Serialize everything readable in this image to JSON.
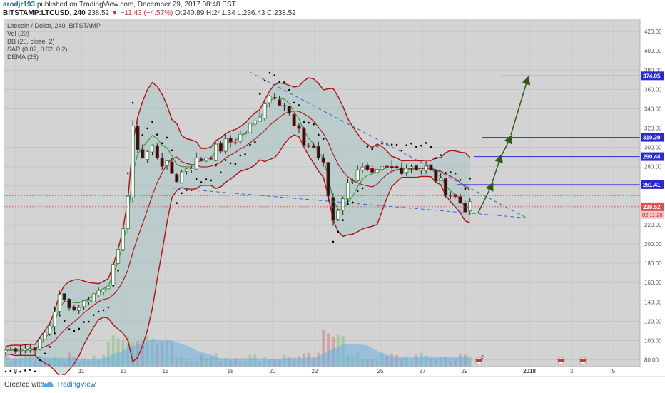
{
  "header": {
    "author": "arodjr193",
    "published": "published on TradingView.com, December 29, 2017 08:48 EST",
    "symbol": "BITSTAMP:LTCUSD, 240",
    "last": "238.52",
    "arrow": "▼",
    "change": "−11.43 (−4.57%)",
    "ohlc": "O:240.89 H:241.34 L:236.43 C:238.52"
  },
  "legend": {
    "title": "Litecoin / Dollar, 240, BITSTAMP",
    "items": [
      "Vol (20)",
      "BB (20, close, 2)",
      "SAR (0.02, 0.02, 0.2)",
      "DEMA (25)"
    ]
  },
  "footer": {
    "created": "Created with",
    "brand": "TradingView"
  },
  "colors": {
    "background": "#d3d3d3",
    "bull": "#3a7a3a",
    "bear": "#b02020",
    "bb": "#b01010",
    "bb_fill": "#a9c6c6",
    "dema": "#2e8b2e",
    "sar": "#000000",
    "volume_ma": "#6aaee0",
    "target": "#2a2ad4",
    "trendline": "#3366cc",
    "projection": "#2f5a1a"
  },
  "chart_data": {
    "type": "candlestick",
    "title": "Litecoin / Dollar, 240, BITSTAMP",
    "timeframe": "240",
    "ylim": [
      76,
      426
    ],
    "y_ticks": [
      80,
      100,
      120,
      140,
      160,
      180,
      200,
      220,
      240,
      260,
      280,
      300,
      320,
      340,
      360,
      380,
      400,
      420
    ],
    "x_ticks": [
      "8",
      "11",
      "13",
      "15",
      "18",
      "20",
      "22",
      "25",
      "27",
      "29",
      "2018",
      "3",
      "5"
    ],
    "price_path": [
      [
        0,
        90
      ],
      [
        6,
        92
      ],
      [
        9,
        116
      ],
      [
        11,
        146
      ],
      [
        14,
        132
      ],
      [
        18,
        148
      ],
      [
        21,
        160
      ],
      [
        23,
        190
      ],
      [
        25,
        250
      ],
      [
        26,
        315
      ],
      [
        28,
        290
      ],
      [
        30,
        300
      ],
      [
        32,
        285
      ],
      [
        35,
        268
      ],
      [
        37,
        280
      ],
      [
        40,
        288
      ],
      [
        44,
        300
      ],
      [
        48,
        312
      ],
      [
        51,
        325
      ],
      [
        53,
        350
      ],
      [
        55,
        358
      ],
      [
        57,
        345
      ],
      [
        59,
        320
      ],
      [
        61,
        305
      ],
      [
        63,
        300
      ],
      [
        65,
        280
      ],
      [
        66,
        250
      ],
      [
        67,
        225
      ],
      [
        69,
        250
      ],
      [
        72,
        280
      ],
      [
        75,
        268
      ],
      [
        77,
        275
      ],
      [
        80,
        278
      ],
      [
        83,
        282
      ],
      [
        86,
        278
      ],
      [
        88,
        268
      ],
      [
        90,
        256
      ],
      [
        92,
        248
      ],
      [
        94,
        238
      ]
    ],
    "horizontal_levels": [
      {
        "label": "374.05",
        "value": 374.05
      },
      {
        "label": "310.39",
        "value": 310.39
      },
      {
        "label": "290.44",
        "value": 290.44
      },
      {
        "label": "261.41",
        "value": 261.41
      }
    ],
    "last_price": {
      "label": "238.52",
      "value": 238.52,
      "countdown": "02:11:20"
    }
  }
}
